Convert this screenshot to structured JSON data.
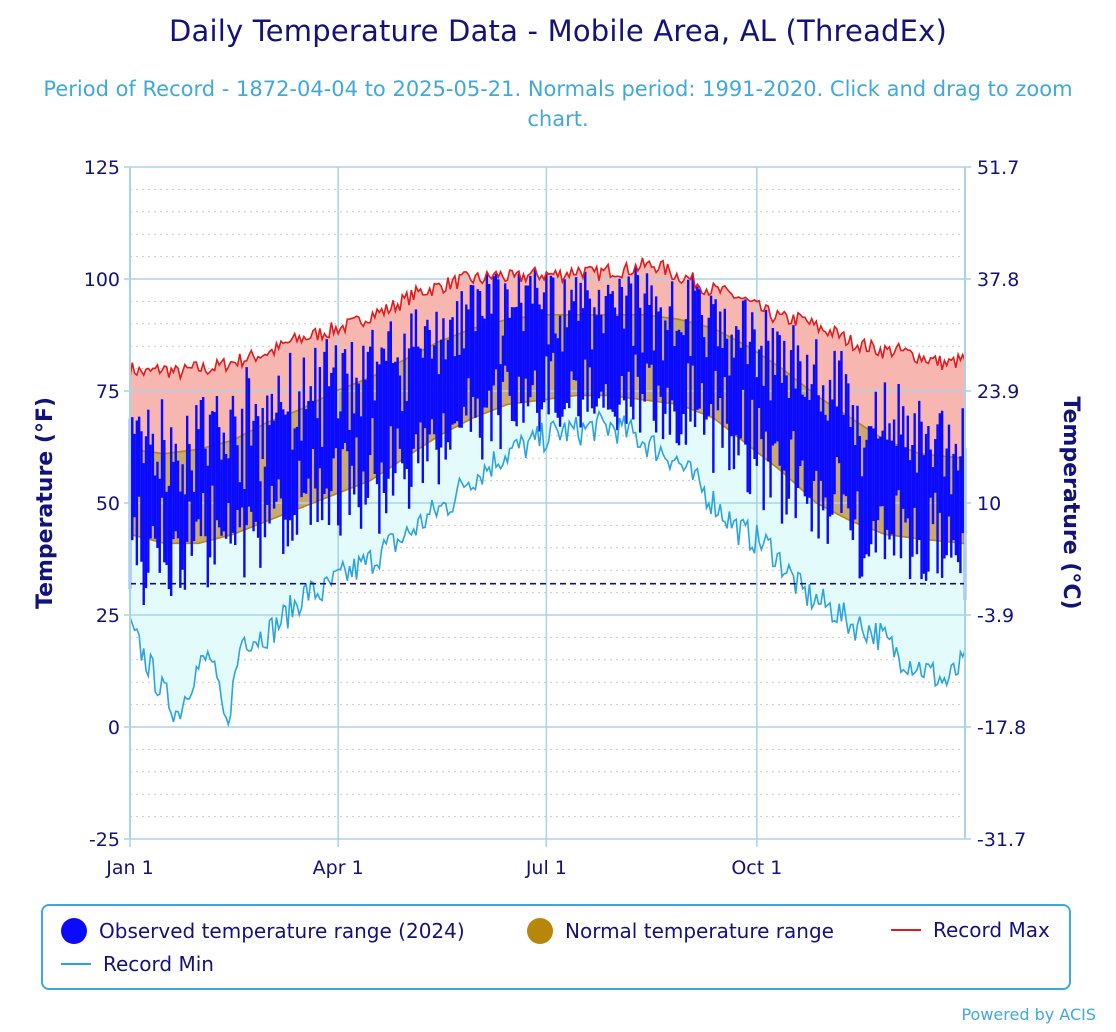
{
  "chart_data": {
    "type": "area",
    "title": "Daily Temperature Data - Mobile Area, AL (ThreadEx)",
    "subtitle": "Period of Record - 1872-04-04 to 2025-05-21. Normals period: 1991-2020. Click and drag to zoom chart.",
    "ylabel": "Temperature (°F)",
    "ylabel_right": "Temperature (°C)",
    "ylim": [
      -25,
      125
    ],
    "yticks": [
      125,
      100,
      75,
      50,
      25,
      0,
      -25
    ],
    "yticks_right": [
      "51.7",
      "37.8",
      "23.9",
      "10",
      "-3.9",
      "-17.8",
      "-31.7"
    ],
    "xlim": [
      1,
      366
    ],
    "xticks": [
      {
        "label": "Jan 1",
        "day": 1
      },
      {
        "label": "Apr 1",
        "day": 92
      },
      {
        "label": "Jul 1",
        "day": 183
      },
      {
        "label": "Oct 1",
        "day": 275
      }
    ],
    "freezing_line": 32,
    "colors": {
      "observed": "#0a0aff",
      "normal": "#b8860b",
      "normal_fill": "#c9a96e",
      "record_max": "#e31a1c",
      "record_max_fill": "#f7b7b0",
      "record_min": "#2aa5dc",
      "record_min_fill": "#e4fbfb",
      "freezing": "#13127a"
    },
    "series": [
      {
        "name": "Record Max",
        "day": [
          1,
          8,
          15,
          22,
          29,
          36,
          43,
          50,
          57,
          64,
          71,
          78,
          85,
          92,
          99,
          106,
          113,
          120,
          127,
          134,
          141,
          148,
          155,
          162,
          169,
          176,
          183,
          190,
          197,
          204,
          211,
          218,
          225,
          232,
          239,
          246,
          253,
          260,
          267,
          274,
          281,
          288,
          295,
          302,
          309,
          316,
          323,
          330,
          337,
          344,
          351,
          358,
          365
        ],
        "values": [
          80,
          79,
          80,
          79,
          80,
          80,
          81,
          82,
          83,
          84,
          86,
          87,
          88,
          89,
          90,
          92,
          93,
          95,
          97,
          98,
          99,
          100,
          100,
          101,
          100,
          101,
          101,
          101,
          102,
          101,
          102,
          102,
          103,
          103,
          101,
          100,
          98,
          97,
          96,
          94,
          92,
          91,
          91,
          89,
          88,
          86,
          85,
          84,
          84,
          83,
          82,
          81,
          82
        ]
      },
      {
        "name": "Record Min",
        "day": [
          1,
          8,
          15,
          22,
          29,
          36,
          43,
          50,
          57,
          64,
          71,
          78,
          85,
          92,
          99,
          106,
          113,
          120,
          127,
          134,
          141,
          148,
          155,
          162,
          169,
          176,
          183,
          190,
          197,
          204,
          211,
          218,
          225,
          232,
          239,
          246,
          253,
          260,
          267,
          274,
          281,
          288,
          295,
          302,
          309,
          316,
          323,
          330,
          337,
          344,
          351,
          358,
          365
        ],
        "values": [
          22,
          15,
          8,
          3,
          12,
          16,
          0,
          20,
          20,
          22,
          26,
          30,
          30,
          33,
          35,
          37,
          40,
          42,
          45,
          48,
          50,
          55,
          57,
          60,
          62,
          63,
          65,
          66,
          66,
          67,
          67,
          66,
          64,
          62,
          60,
          56,
          52,
          48,
          44,
          42,
          40,
          35,
          30,
          28,
          26,
          23,
          22,
          20,
          16,
          14,
          12,
          10,
          14
        ]
      },
      {
        "name": "Normal temperature range",
        "day": [
          1,
          16,
          31,
          46,
          61,
          76,
          91,
          106,
          121,
          136,
          151,
          166,
          181,
          196,
          211,
          226,
          241,
          256,
          271,
          286,
          301,
          316,
          331,
          346,
          365
        ],
        "high": [
          62,
          61,
          62,
          64,
          68,
          71,
          75,
          78,
          82,
          86,
          89,
          91,
          92,
          92,
          92,
          92,
          91,
          89,
          85,
          80,
          74,
          69,
          64,
          61,
          60
        ],
        "low": [
          43,
          41,
          41,
          43,
          46,
          49,
          52,
          55,
          60,
          65,
          69,
          72,
          73,
          74,
          74,
          73,
          72,
          69,
          63,
          57,
          50,
          46,
          43,
          42,
          41
        ]
      },
      {
        "name": "Observed temperature range (2024)",
        "note_style": "vertical daily bars from daily low to daily high",
        "day_range": [
          1,
          366
        ]
      }
    ]
  },
  "legend": {
    "observed": "Observed temperature range (2024)",
    "normal": "Normal temperature range",
    "record_max": "Record Max",
    "record_min": "Record Min"
  },
  "credit": "Powered by ACIS"
}
